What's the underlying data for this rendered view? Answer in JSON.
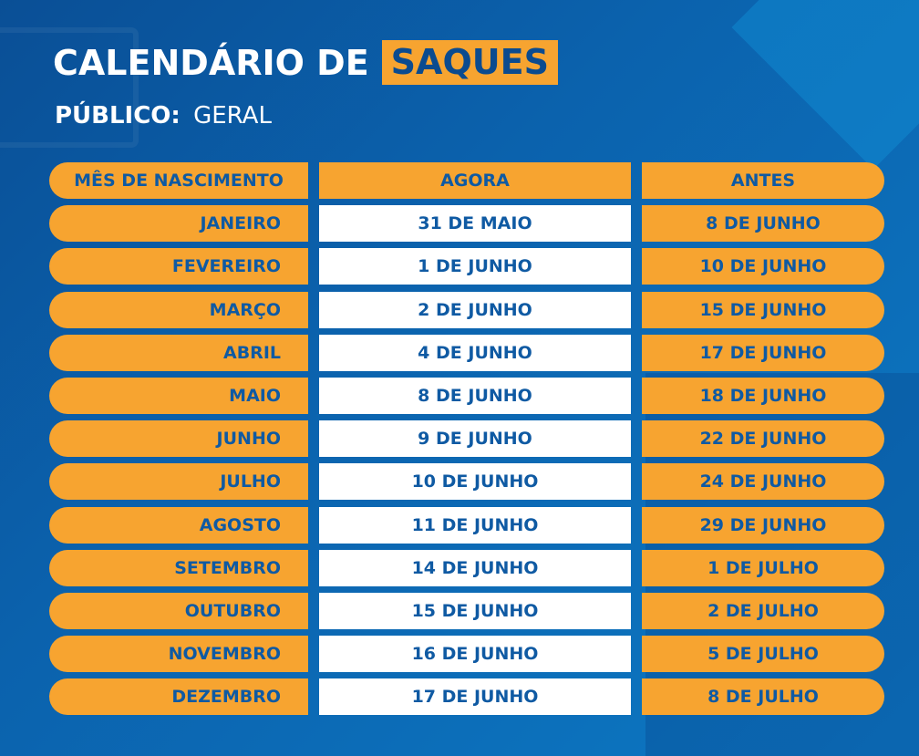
{
  "header": {
    "title_main": "CALENDÁRIO DE",
    "title_highlight": "SAQUES",
    "subtitle_label": "PÚBLICO:",
    "subtitle_value": "GERAL"
  },
  "table": {
    "columns": [
      "MÊS DE NASCIMENTO",
      "AGORA",
      "ANTES"
    ],
    "rows": [
      [
        "JANEIRO",
        "31 DE MAIO",
        "8 DE JUNHO"
      ],
      [
        "FEVEREIRO",
        "1 DE JUNHO",
        "10 DE JUNHO"
      ],
      [
        "MARÇO",
        "2 DE JUNHO",
        "15 DE JUNHO"
      ],
      [
        "ABRIL",
        "4 DE JUNHO",
        "17 DE JUNHO"
      ],
      [
        "MAIO",
        "8 DE JUNHO",
        "18 DE JUNHO"
      ],
      [
        "JUNHO",
        "9 DE JUNHO",
        "22 DE JUNHO"
      ],
      [
        "JULHO",
        "10 DE JUNHO",
        "24 DE JUNHO"
      ],
      [
        "AGOSTO",
        "11 DE JUNHO",
        "29 DE JUNHO"
      ],
      [
        "SETEMBRO",
        "14 DE JUNHO",
        "1 DE JULHO"
      ],
      [
        "OUTUBRO",
        "15 DE JUNHO",
        "2 DE JULHO"
      ],
      [
        "NOVEMBRO",
        "16 DE JUNHO",
        "5 DE JULHO"
      ],
      [
        "DEZEMBRO",
        "17 DE JUNHO",
        "8 DE JULHO"
      ]
    ]
  },
  "colors": {
    "background": "#0b62ad",
    "orange": "#f7a430",
    "text_blue": "#0f5aa3",
    "white": "#ffffff"
  }
}
